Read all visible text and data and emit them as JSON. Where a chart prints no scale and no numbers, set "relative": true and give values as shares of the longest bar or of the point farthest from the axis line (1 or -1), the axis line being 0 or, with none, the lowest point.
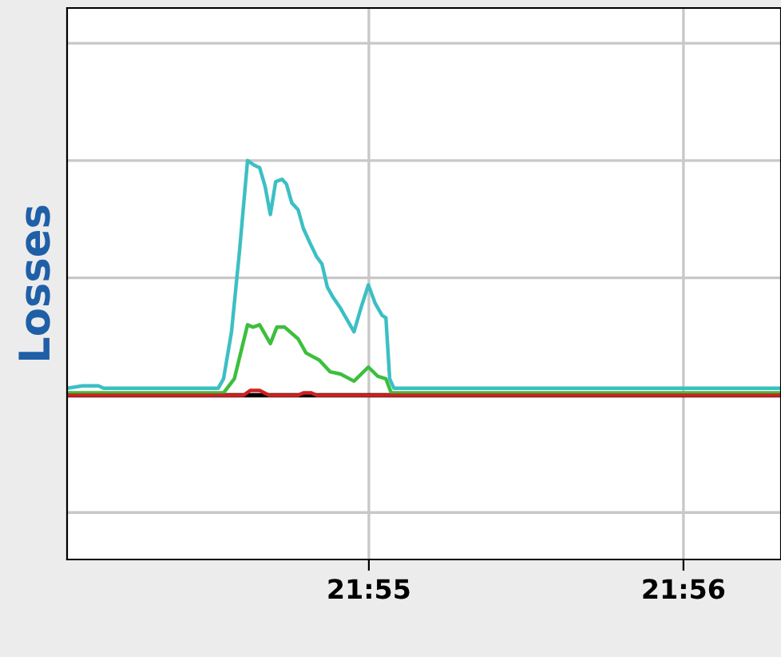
{
  "chart_data": {
    "type": "line",
    "ylabel": "Losses",
    "relative": true,
    "grid": true,
    "tick_labels": "x",
    "xlim": [
      21.90068,
      21.9385
    ],
    "xticks": [
      {
        "value": 21.916667,
        "label": "21:55"
      },
      {
        "value": 21.933333,
        "label": "21:56"
      }
    ],
    "ref_lines": [
      {
        "axis": "y",
        "value": 0,
        "color": "#000000"
      }
    ],
    "series": [
      {
        "color": "#3cbfc4",
        "x": [
          21.90068,
          21.9015,
          21.90234,
          21.90262,
          21.90869,
          21.90897,
          21.90939,
          21.90981,
          21.91024,
          21.9106,
          21.91088,
          21.91117,
          21.91145,
          21.91173,
          21.91207,
          21.9123,
          21.91258,
          21.91292,
          21.9132,
          21.91354,
          21.9139,
          21.91418,
          21.91447,
          21.91475,
          21.91517,
          21.91588,
          21.91624,
          21.91664,
          21.91701,
          21.91737,
          21.91757,
          21.91777,
          21.91799,
          21.9385
        ],
        "values": [
          0.03,
          0.04,
          0.04,
          0.03,
          0.03,
          0.07,
          0.27,
          0.61,
          1.0,
          0.98,
          0.97,
          0.89,
          0.77,
          0.91,
          0.92,
          0.9,
          0.82,
          0.79,
          0.71,
          0.65,
          0.59,
          0.56,
          0.46,
          0.42,
          0.37,
          0.27,
          0.37,
          0.47,
          0.39,
          0.34,
          0.33,
          0.07,
          0.03,
          0.03
        ]
      },
      {
        "color": "#3cbf3c",
        "x": [
          21.90068,
          21.90897,
          21.90954,
          21.91024,
          21.91052,
          21.91088,
          21.91145,
          21.91179,
          21.91221,
          21.91292,
          21.91334,
          21.91404,
          21.91461,
          21.91517,
          21.91588,
          21.91664,
          21.91715,
          21.91757,
          21.91785,
          21.9385
        ],
        "values": [
          0.01,
          0.01,
          0.07,
          0.3,
          0.29,
          0.3,
          0.22,
          0.29,
          0.29,
          0.24,
          0.18,
          0.15,
          0.1,
          0.09,
          0.06,
          0.12,
          0.08,
          0.07,
          0.01,
          0.01
        ]
      },
      {
        "color": "#d02020",
        "x": [
          21.90068,
          21.91003,
          21.91038,
          21.91088,
          21.91138,
          21.91292,
          21.9132,
          21.91362,
          21.9139,
          21.91475,
          21.9385
        ],
        "values": [
          0,
          0,
          0.02,
          0.02,
          0,
          0,
          0.01,
          0.01,
          0,
          0,
          0
        ]
      }
    ]
  }
}
